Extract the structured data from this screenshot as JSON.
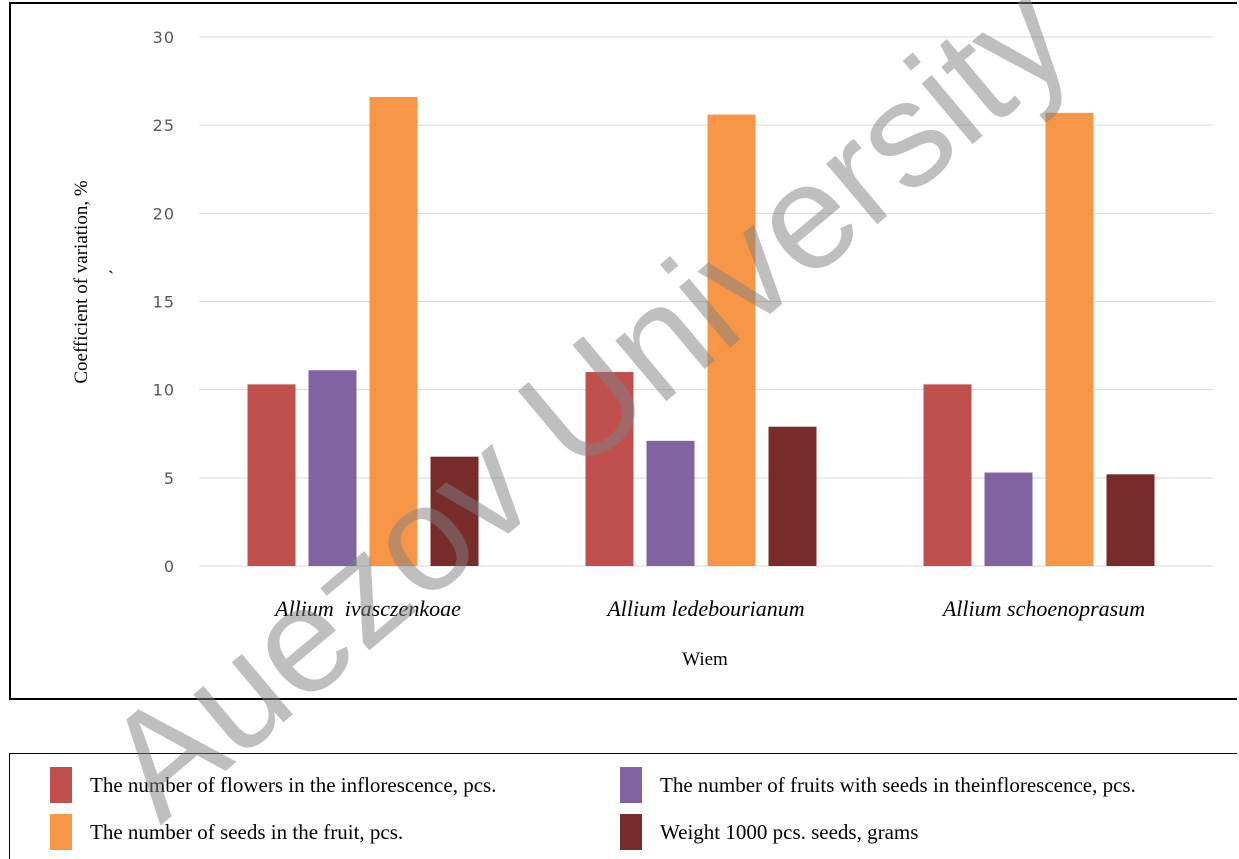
{
  "chart_data": {
    "type": "bar",
    "categories": [
      "Allium  ivasczenkoae",
      "Allium ledebourianum",
      "Allium schoenoprasum"
    ],
    "series": [
      {
        "name": "The number of flowers in the inflorescence, pcs.",
        "color": "#c0504d",
        "values": [
          10.3,
          11.0,
          10.3
        ]
      },
      {
        "name": "The number of fruits with seeds in theinflorescence, pcs.",
        "color": "#8064a2",
        "values": [
          11.1,
          7.1,
          5.3
        ]
      },
      {
        "name": "The number of seeds in the fruit, pcs.",
        "color": "#f79646",
        "values": [
          26.6,
          25.6,
          25.7
        ]
      },
      {
        "name": "Weight 1000 pcs. seeds, grams",
        "color": "#772c2a",
        "values": [
          6.2,
          7.9,
          5.2
        ]
      }
    ],
    "yticks": [
      0,
      5,
      10,
      15,
      20,
      25,
      30
    ],
    "ylim": [
      0,
      30
    ],
    "xlabel": "Wiem",
    "ylabel": "Coefficient of variation,  %",
    "ylabel_mark": "`",
    "grid": true,
    "legend_position": "bottom"
  },
  "watermark": {
    "text": "Auezov  University",
    "color": "#808080"
  }
}
